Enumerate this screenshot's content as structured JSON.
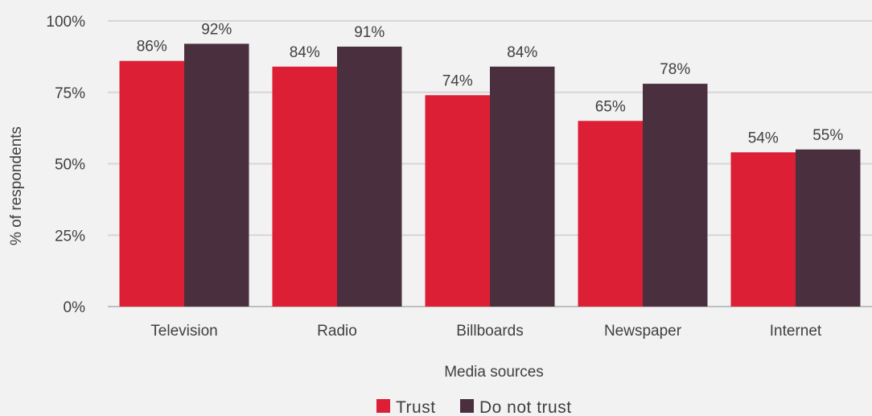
{
  "chart_data": {
    "type": "bar",
    "categories": [
      "Television",
      "Radio",
      "Billboards",
      "Newspaper",
      "Internet"
    ],
    "series": [
      {
        "name": "Trust",
        "values": [
          86,
          84,
          74,
          65,
          54
        ],
        "color": "#dc1f35"
      },
      {
        "name": "Do not trust",
        "values": [
          92,
          91,
          84,
          78,
          55
        ],
        "color": "#4a2f3e"
      }
    ],
    "xlabel": "Media sources",
    "ylabel": "% of respondents",
    "ylim": [
      0,
      100
    ],
    "yticks": [
      0,
      25,
      50,
      75,
      100
    ],
    "ytick_labels": [
      "0%",
      "25%",
      "50%",
      "75%",
      "100%"
    ],
    "value_suffix": "%",
    "grid": true,
    "legend_position": "bottom-center",
    "gridline_color": "#d9d4d8",
    "axis_line_color": "#bfbfbf"
  }
}
